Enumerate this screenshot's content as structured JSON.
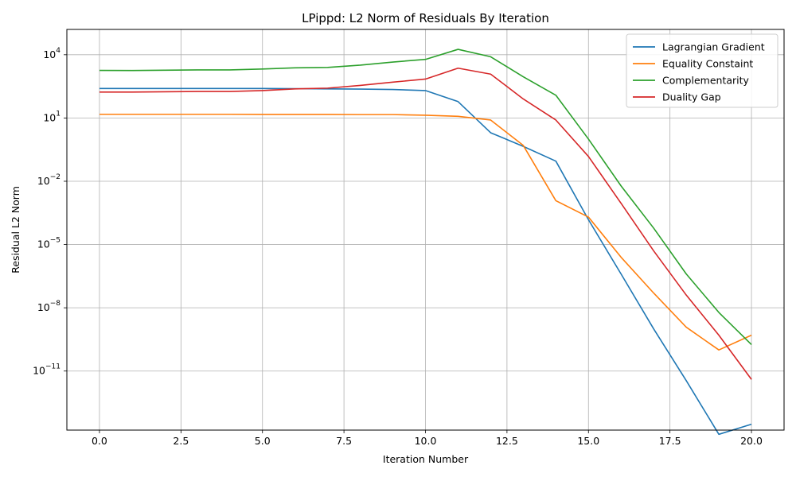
{
  "chart_data": {
    "type": "line",
    "title": "LPippd: L2 Norm of Residuals By Iteration",
    "xlabel": "Iteration Number",
    "ylabel": "Residual L2 Norm",
    "xlim": [
      -1,
      21
    ],
    "ylim_log10": [
      -13.8,
      5.2
    ],
    "yscale": "log",
    "grid": true,
    "legend_position": "top-right",
    "x_ticks": [
      0.0,
      2.5,
      5.0,
      7.5,
      10.0,
      12.5,
      15.0,
      17.5,
      20.0
    ],
    "x_tick_labels": [
      "0.0",
      "2.5",
      "5.0",
      "7.5",
      "10.0",
      "12.5",
      "15.0",
      "17.5",
      "20.0"
    ],
    "y_tick_exponents": [
      -11,
      -8,
      -5,
      -2,
      1,
      4
    ],
    "y_tick_base": "10",
    "x": [
      0,
      1,
      2,
      3,
      4,
      5,
      6,
      7,
      8,
      9,
      10,
      11,
      12,
      13,
      14,
      15,
      16,
      17,
      18,
      19,
      20
    ],
    "series": [
      {
        "name": "Lagrangian Gradient",
        "color": "#1f77b4",
        "values": [
          250,
          250,
          250,
          250,
          250,
          250,
          245,
          240,
          235,
          225,
          200,
          60,
          2,
          0.45,
          0.09,
          0.00015,
          4e-07,
          1e-09,
          3.5e-12,
          1e-14,
          3e-14
        ]
      },
      {
        "name": "Equality Constaint",
        "color": "#ff7f0e",
        "values": [
          15,
          15,
          15,
          15,
          15,
          14.8,
          14.8,
          14.8,
          14.5,
          14.5,
          13.5,
          12,
          8,
          0.5,
          0.0012,
          0.0002,
          2.5e-06,
          5e-08,
          1.2e-09,
          1e-10,
          5e-10
        ]
      },
      {
        "name": "Complementarity",
        "color": "#2ca02c",
        "values": [
          1800,
          1780,
          1850,
          1900,
          1900,
          2100,
          2400,
          2500,
          3200,
          4500,
          6000,
          18000,
          8000,
          900,
          120,
          1,
          0.006,
          6e-05,
          4e-07,
          6e-09,
          1.8e-10
        ]
      },
      {
        "name": "Duality Gap",
        "color": "#d62728",
        "values": [
          170,
          170,
          175,
          180,
          180,
          200,
          240,
          260,
          350,
          500,
          700,
          2300,
          1200,
          80,
          8,
          0.15,
          0.0009,
          5e-06,
          4e-08,
          5e-10,
          4e-12
        ]
      }
    ]
  }
}
